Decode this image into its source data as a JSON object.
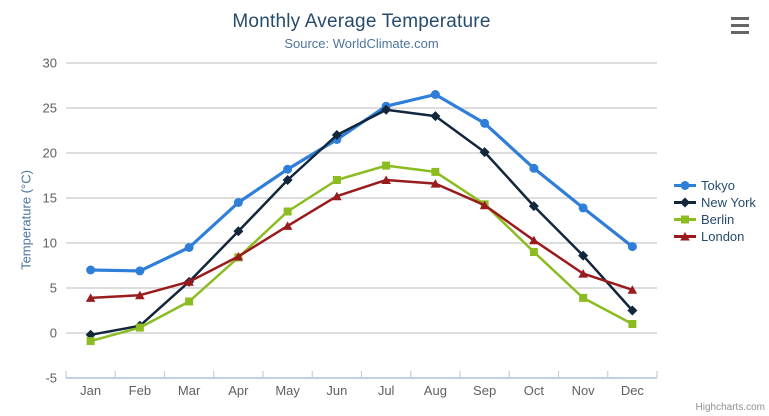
{
  "menu": {
    "icon": "hamburger-menu"
  },
  "credits": "Highcharts.com",
  "chart_data": {
    "type": "line",
    "title": "Monthly Average Temperature",
    "subtitle": "Source: WorldClimate.com",
    "categories": [
      "Jan",
      "Feb",
      "Mar",
      "Apr",
      "May",
      "Jun",
      "Jul",
      "Aug",
      "Sep",
      "Oct",
      "Nov",
      "Dec"
    ],
    "xlabel": "",
    "ylabel": "Temperature (°C)",
    "ylim": [
      -5,
      30
    ],
    "ytick_step": 5,
    "yticks": [
      -5,
      0,
      5,
      10,
      15,
      20,
      25,
      30
    ],
    "grid": true,
    "legend_position": "right",
    "colors": {
      "grid": "#d2d2d2",
      "axis_line": "#c0d0e0",
      "tick_label": "#606060",
      "title": "#274b6d",
      "subtitle": "#4d759e",
      "legend_text": "#274b6d"
    },
    "series": [
      {
        "name": "Tokyo",
        "color": "#2f7ed8",
        "marker": "circle",
        "values": [
          7.0,
          6.9,
          9.5,
          14.5,
          18.2,
          21.5,
          25.2,
          26.5,
          23.3,
          18.3,
          13.9,
          9.6
        ]
      },
      {
        "name": "New York",
        "color": "#12263c",
        "marker": "diamond",
        "values": [
          -0.2,
          0.8,
          5.7,
          11.3,
          17.0,
          22.0,
          24.8,
          24.1,
          20.1,
          14.1,
          8.6,
          2.5
        ]
      },
      {
        "name": "Berlin",
        "color": "#8bbc21",
        "marker": "square",
        "values": [
          -0.9,
          0.6,
          3.5,
          8.4,
          13.5,
          17.0,
          18.6,
          17.9,
          14.3,
          9.0,
          3.9,
          1.0
        ]
      },
      {
        "name": "London",
        "color": "#9a1b1e",
        "marker": "triangle",
        "values": [
          3.9,
          4.2,
          5.7,
          8.5,
          11.9,
          15.2,
          17.0,
          16.6,
          14.2,
          10.3,
          6.6,
          4.8
        ]
      }
    ]
  }
}
